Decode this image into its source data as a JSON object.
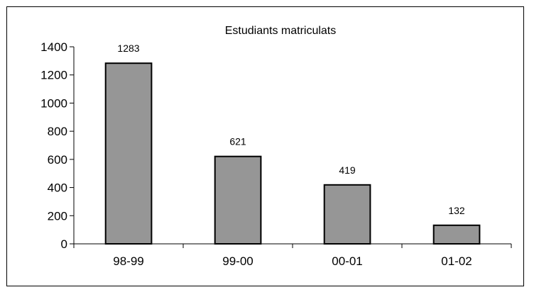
{
  "chart_data": {
    "type": "bar",
    "title": "Estudiants matriculats",
    "categories": [
      "98-99",
      "99-00",
      "00-01",
      "01-02"
    ],
    "values": [
      1283,
      621,
      419,
      132
    ],
    "data_labels": [
      "1283",
      "621",
      "419",
      "132"
    ],
    "ylim": [
      0,
      1400
    ],
    "yticks": [
      "0",
      "200",
      "400",
      "600",
      "800",
      "1000",
      "1200",
      "1400"
    ],
    "grid": false,
    "legend": "none",
    "bar_color": "#969696",
    "bar_edge_color": "#000000"
  }
}
